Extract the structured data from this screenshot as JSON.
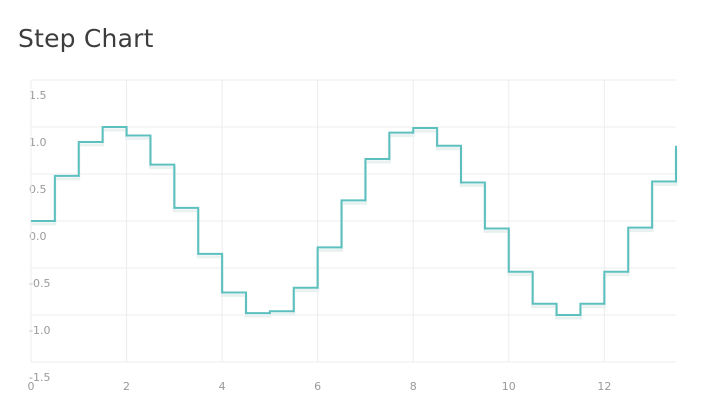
{
  "header": {
    "title": "Step Chart"
  },
  "colors": {
    "line": "#5bc0be",
    "grid": "#ececec",
    "tick_text": "#9a9a9a",
    "title_text": "#3d3d3d"
  },
  "chart_data": {
    "type": "line",
    "step": true,
    "title": "Step Chart",
    "xlabel": "",
    "ylabel": "",
    "xlim": [
      0,
      13.5
    ],
    "ylim": [
      -1.5,
      1.5
    ],
    "grid": true,
    "x_ticks": [
      0,
      2,
      4,
      6,
      8,
      10,
      12
    ],
    "y_ticks": [
      -1.5,
      -1.0,
      -0.5,
      0.0,
      0.5,
      1.0,
      1.5
    ],
    "x_tick_labels": [
      "0",
      "2",
      "4",
      "6",
      "8",
      "10",
      "12"
    ],
    "y_tick_labels": [
      "-1.5",
      "-1.0",
      "-0.5",
      "0.0",
      "0.5",
      "1.0",
      "1.5"
    ],
    "series": [
      {
        "x": [
          0,
          0.5,
          1,
          1.5,
          2,
          2.5,
          3,
          3.5,
          4,
          4.5,
          5,
          5.5,
          6,
          6.5,
          7,
          7.5,
          8,
          8.5,
          9,
          9.5,
          10,
          10.5,
          11,
          11.5,
          12,
          12.5,
          13,
          13.5
        ],
        "values": [
          0.0,
          0.48,
          0.84,
          1.0,
          0.91,
          0.6,
          0.14,
          -0.35,
          -0.76,
          -0.98,
          -0.96,
          -0.71,
          -0.28,
          0.22,
          0.66,
          0.94,
          0.99,
          0.8,
          0.41,
          -0.08,
          -0.54,
          -0.88,
          -1.0,
          -0.88,
          -0.54,
          -0.07,
          0.42,
          0.8
        ]
      }
    ]
  }
}
